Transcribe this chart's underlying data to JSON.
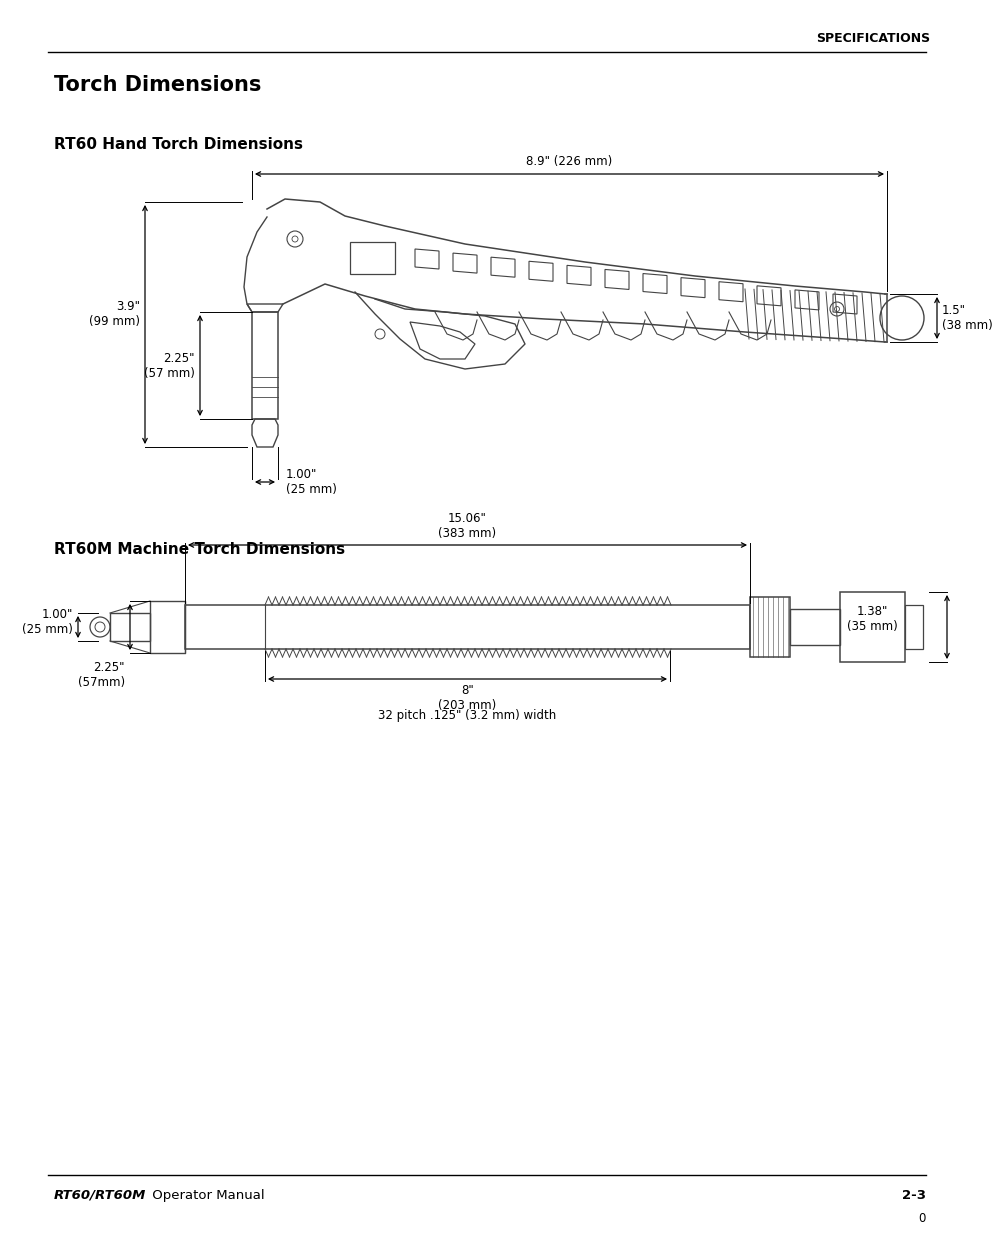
{
  "page_title": "SPECIFICATIONS",
  "main_title": "Torch Dimensions",
  "section1_title": "RT60 Hand Torch Dimensions",
  "section2_title": "RT60M Machine Torch Dimensions",
  "footer_left_italic": "RT60/RT60M",
  "footer_left_normal": " Operator Manual",
  "footer_right": "2-3",
  "footer_page": "0",
  "hand_torch": {
    "dim_horiz_label": "8.9\" (226 mm)",
    "dim_height_label": "3.9\"\n(99 mm)",
    "dim_nozzle_label": "2.25\"\n(57 mm)",
    "dim_tip_label": "1.00\"\n(25 mm)",
    "dim_right_label": "1.5\"\n(38 mm)"
  },
  "machine_torch": {
    "dim_total_label": "15.06\"\n(383 mm)",
    "dim_thread_label": "8\"\n(203 mm)",
    "dim_left_h_label": "1.00\"\n(25 mm)",
    "dim_body_h_label": "2.25\"\n(57mm)",
    "dim_right_h_label": "1.38\"\n(35 mm)",
    "dim_pitch_label": "32 pitch .125\" (3.2 mm) width"
  },
  "bg_color": "#ffffff",
  "text_color": "#000000",
  "draw_color": "#444444",
  "line_color": "#000000"
}
